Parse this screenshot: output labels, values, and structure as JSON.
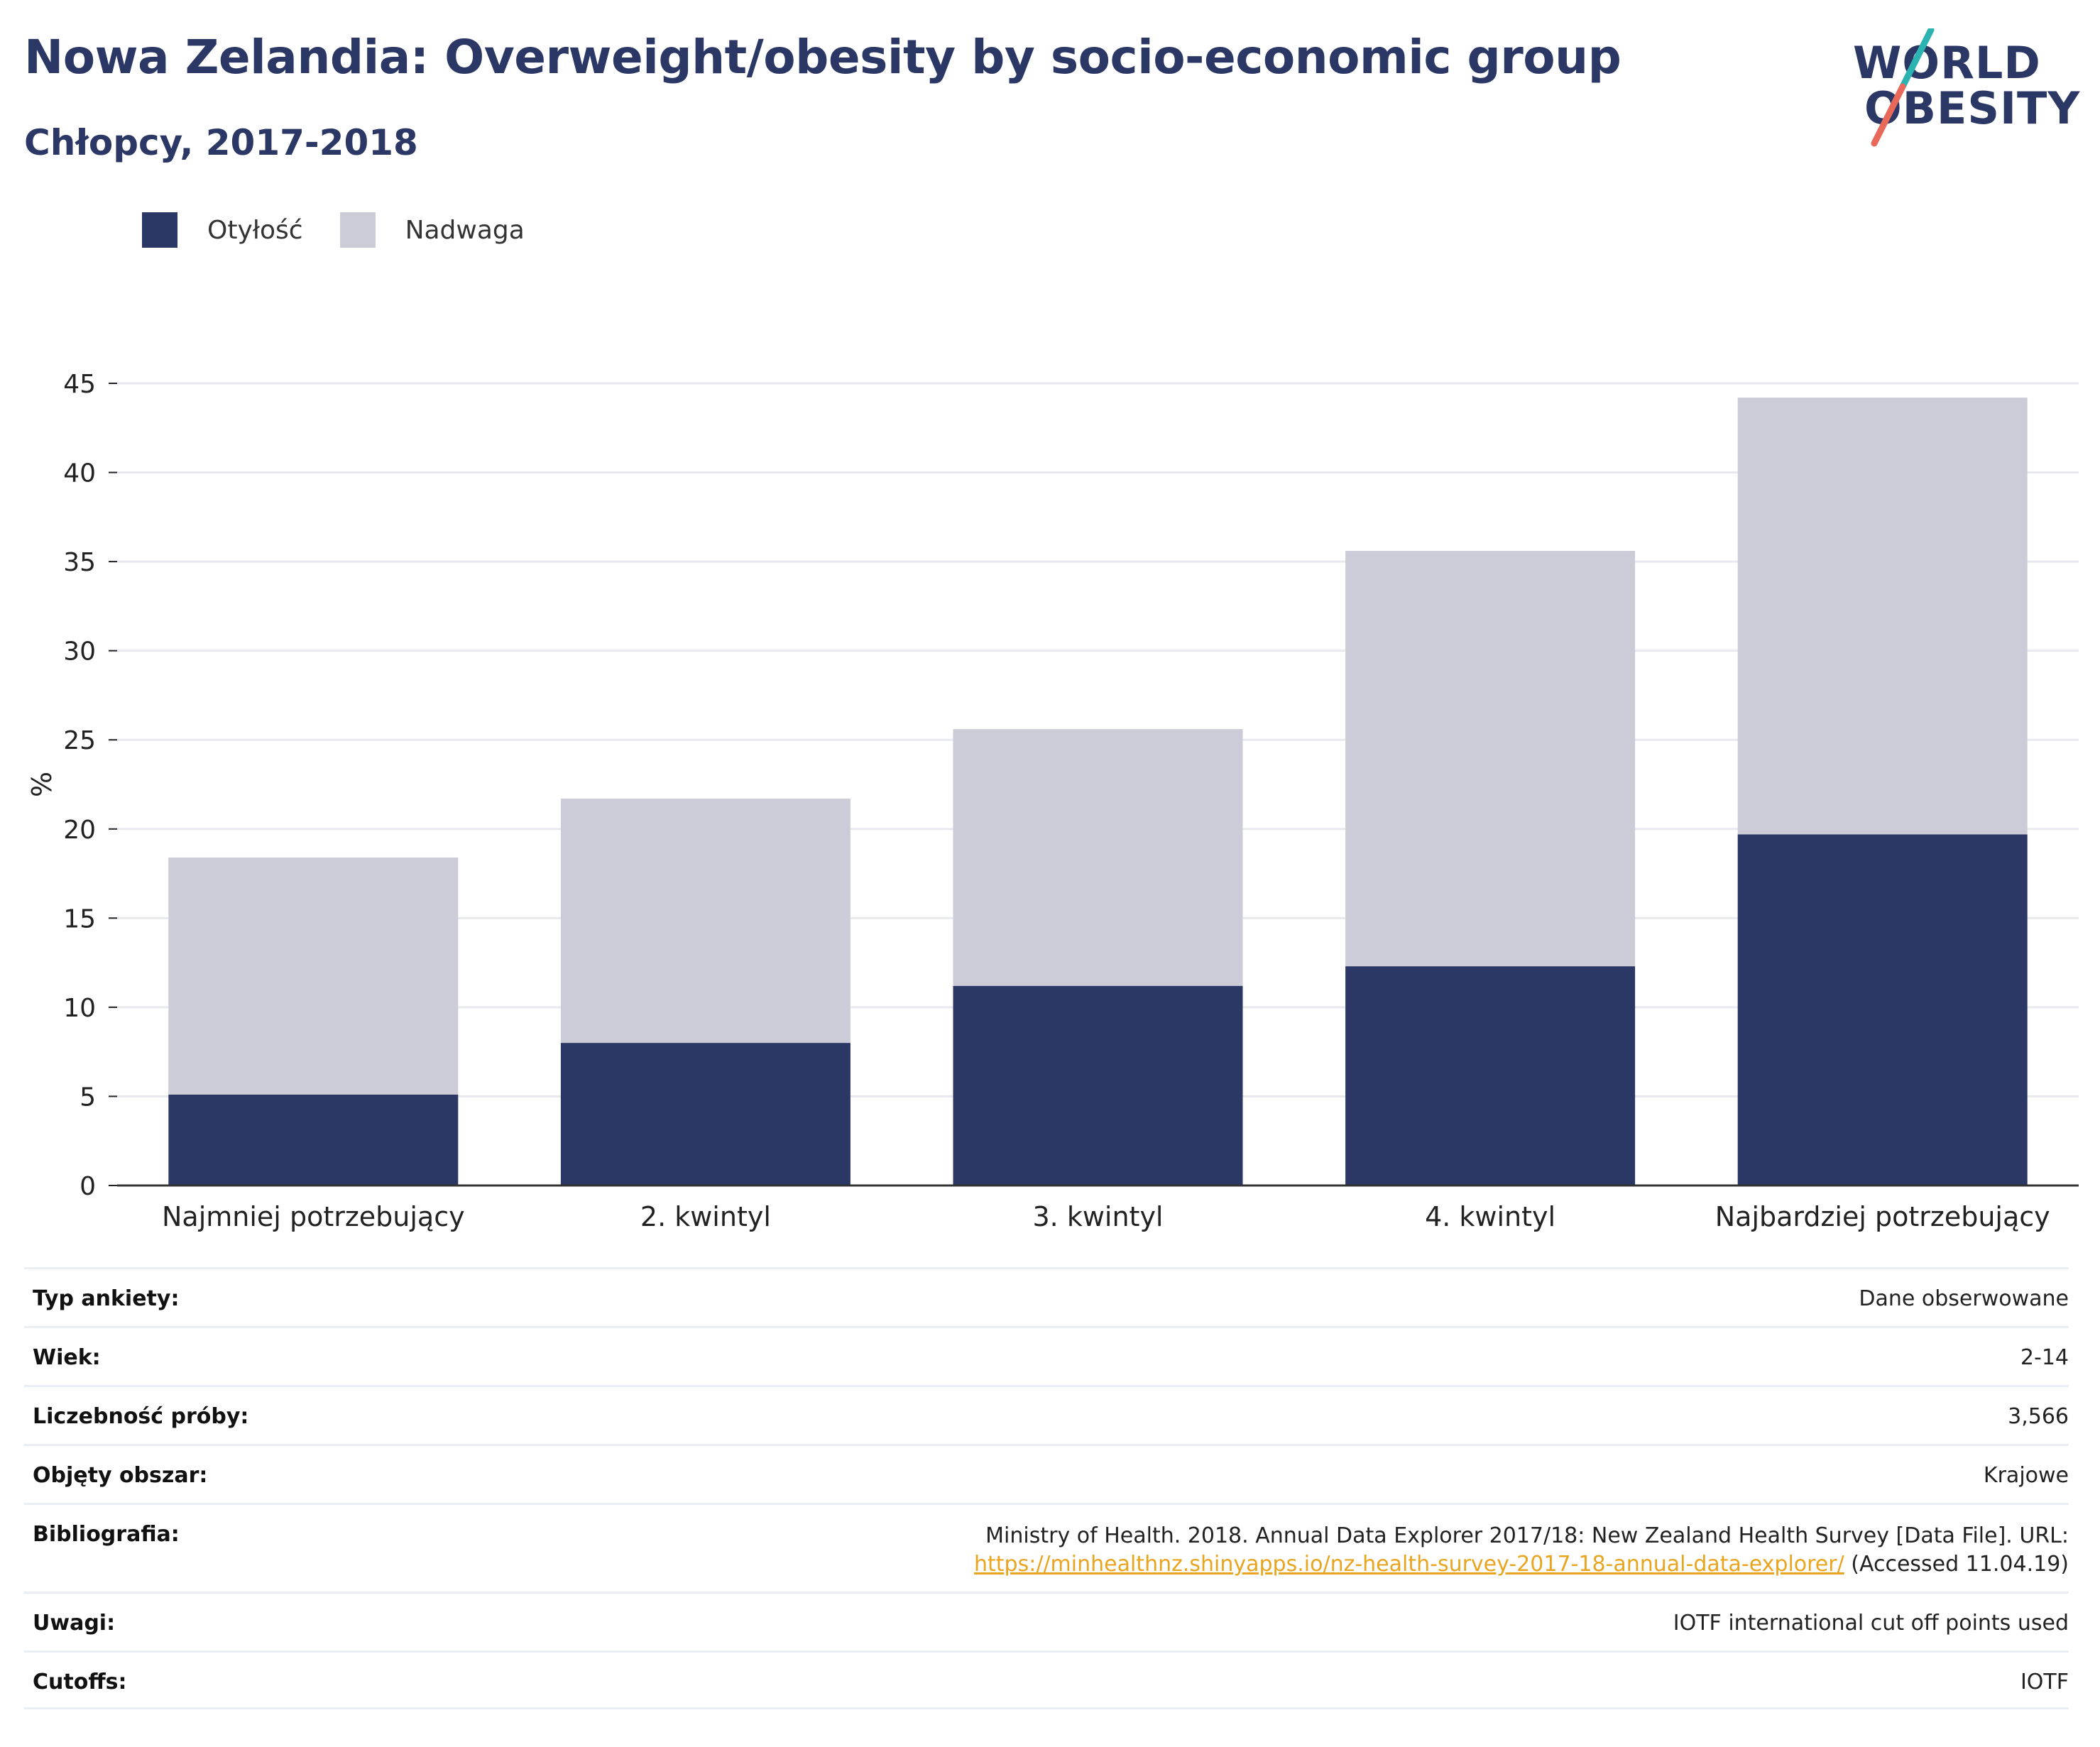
{
  "header": {
    "title": "Nowa Zelandia: Overweight/obesity by socio-economic group",
    "subtitle": "Chłopcy, 2017-2018"
  },
  "logo": {
    "line1": "WORLD",
    "line2": "OBESITY"
  },
  "legend": [
    {
      "label": "Otyłość",
      "color": "#2b3765"
    },
    {
      "label": "Nadwaga",
      "color": "#cbccd8"
    }
  ],
  "chart_data": {
    "type": "bar",
    "stacked": true,
    "categories": [
      "Najmniej potrzebujący",
      "2. kwintyl",
      "3. kwintyl",
      "4. kwintyl",
      "Najbardziej potrzebujący"
    ],
    "series": [
      {
        "name": "Otyłość",
        "color": "#2b3765",
        "values": [
          5.1,
          8.0,
          11.2,
          12.3,
          19.7
        ]
      },
      {
        "name": "Nadwaga",
        "color": "#cbccd8",
        "values": [
          13.3,
          13.7,
          14.4,
          23.3,
          24.5
        ]
      }
    ],
    "ylabel": "%",
    "ylim": [
      0,
      45
    ],
    "yticks": [
      0,
      5,
      10,
      15,
      20,
      25,
      30,
      35,
      40,
      45
    ],
    "grid": true
  },
  "meta": [
    {
      "key": "Typ ankiety:",
      "value": "Dane obserwowane"
    },
    {
      "key": "Wiek:",
      "value": "2-14"
    },
    {
      "key": "Liczebność próby:",
      "value": "3,566"
    },
    {
      "key": "Objęty obszar:",
      "value": "Krajowe"
    },
    {
      "key": "Bibliografia:",
      "value": "Ministry of Health. 2018. Annual Data Explorer 2017/18: New Zealand Health Survey [Data File]. URL:",
      "link": "https://minhealthnz.shinyapps.io/nz-health-survey-2017-18-annual-data-explorer/",
      "suffix": " (Accessed 11.04.19)"
    },
    {
      "key": "Uwagi:",
      "value": "IOTF international cut off points used"
    },
    {
      "key": "Cutoffs:",
      "value": "IOTF"
    }
  ]
}
